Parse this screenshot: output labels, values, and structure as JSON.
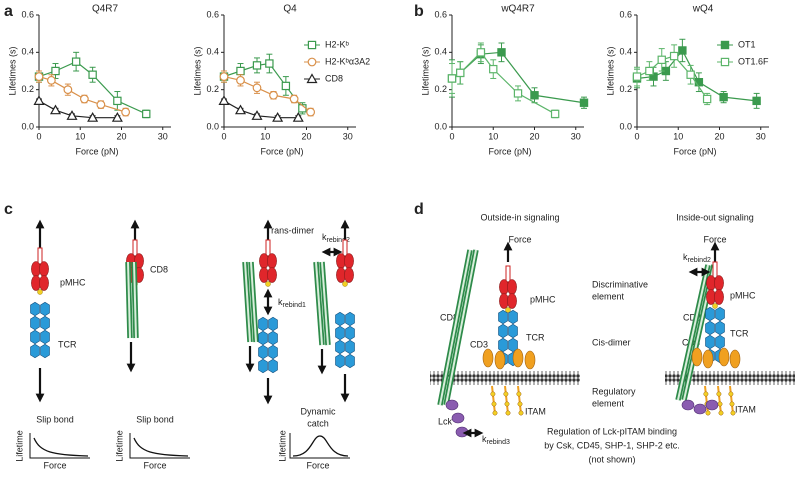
{
  "chart_data": [
    {
      "type": "line",
      "title": "Q4R7",
      "xlabel": "Force (pN)",
      "ylabel": "Lifetimes (s)",
      "xlim": [
        0,
        32
      ],
      "ylim": [
        0,
        0.6
      ],
      "xticks": [
        0,
        10,
        20,
        30
      ],
      "yticks": [
        {
          "value": 0,
          "label": "0.0"
        },
        {
          "value": 0.2,
          "label": "0.2"
        },
        {
          "value": 0.4,
          "label": "0.4"
        },
        {
          "value": 0.6,
          "label": "0.6"
        }
      ],
      "legend": false,
      "series": [
        {
          "color": "#3b9a4e",
          "marker": "square-open",
          "x": [
            0,
            4,
            9,
            13,
            19,
            26
          ],
          "values": [
            0.27,
            0.3,
            0.35,
            0.28,
            0.14,
            0.07
          ],
          "errors": [
            0.03,
            0.04,
            0.05,
            0.04,
            0.05,
            0.02
          ]
        },
        {
          "color": "#d9904a",
          "marker": "circle-open",
          "x": [
            0,
            3,
            7,
            11,
            15,
            21
          ],
          "values": [
            0.27,
            0.25,
            0.2,
            0.15,
            0.12,
            0.08
          ],
          "errors": [
            0.03,
            0.03,
            0.03,
            0.02,
            0.02,
            0.02
          ]
        },
        {
          "color": "#222222",
          "marker": "triangle-open",
          "x": [
            0,
            4,
            8,
            13,
            19
          ],
          "values": [
            0.14,
            0.09,
            0.06,
            0.05,
            0.05
          ],
          "errors": [
            0.01,
            0.01,
            0.01,
            0.01,
            0.01
          ]
        }
      ]
    },
    {
      "type": "line",
      "title": "Q4",
      "xlabel": "Force (pN)",
      "ylabel": "Lifetimes (s)",
      "xlim": [
        0,
        32
      ],
      "ylim": [
        0,
        0.6
      ],
      "xticks": [
        0,
        10,
        20,
        30
      ],
      "yticks": [
        {
          "value": 0,
          "label": "0.0"
        },
        {
          "value": 0.2,
          "label": "0.2"
        },
        {
          "value": 0.4,
          "label": "0.4"
        },
        {
          "value": 0.6,
          "label": "0.6"
        }
      ],
      "legend": "upper right",
      "series": [
        {
          "name": "H2-Kᵇ",
          "color": "#3b9a4e",
          "marker": "square-open",
          "x": [
            0,
            4,
            8,
            11,
            15,
            19
          ],
          "values": [
            0.27,
            0.3,
            0.33,
            0.34,
            0.22,
            0.1
          ],
          "errors": [
            0.03,
            0.04,
            0.04,
            0.05,
            0.05,
            0.03
          ]
        },
        {
          "name": "H2-Kᵇα3A2",
          "color": "#d9904a",
          "marker": "circle-open",
          "x": [
            0,
            4,
            8,
            12,
            17,
            21
          ],
          "values": [
            0.27,
            0.25,
            0.21,
            0.17,
            0.15,
            0.08
          ],
          "errors": [
            0.03,
            0.03,
            0.03,
            0.02,
            0.02,
            0.02
          ]
        },
        {
          "name": "CD8",
          "color": "#222222",
          "marker": "triangle-open",
          "x": [
            0,
            4,
            8,
            13,
            18
          ],
          "values": [
            0.14,
            0.09,
            0.06,
            0.05,
            0.05
          ],
          "errors": [
            0.01,
            0.01,
            0.01,
            0.01,
            0.01
          ]
        }
      ]
    },
    {
      "type": "line",
      "title": "wQ4R7",
      "xlabel": "Force (pN)",
      "ylabel": "Lifetimes (s)",
      "xlim": [
        0,
        32
      ],
      "ylim": [
        0,
        0.6
      ],
      "xticks": [
        0,
        10,
        20,
        30
      ],
      "yticks": [
        {
          "value": 0,
          "label": "0.0"
        },
        {
          "value": 0.2,
          "label": "0.2"
        },
        {
          "value": 0.4,
          "label": "0.4"
        },
        {
          "value": 0.6,
          "label": "0.6"
        }
      ],
      "legend": false,
      "series": [
        {
          "color": "#3b9a4e",
          "marker": "square-filled",
          "x": [
            0,
            2,
            7,
            12,
            20,
            32
          ],
          "values": [
            0.26,
            0.29,
            0.39,
            0.4,
            0.17,
            0.13
          ],
          "errors": [
            0.1,
            0.06,
            0.05,
            0.05,
            0.04,
            0.03
          ]
        },
        {
          "color": "#5cb56a",
          "marker": "square-open",
          "x": [
            0,
            2,
            7,
            10,
            16,
            25
          ],
          "values": [
            0.26,
            0.29,
            0.4,
            0.31,
            0.18,
            0.07
          ],
          "errors": [
            0.08,
            0.06,
            0.05,
            0.05,
            0.04,
            0.02
          ]
        }
      ]
    },
    {
      "type": "line",
      "title": "wQ4",
      "xlabel": "Force (pN)",
      "ylabel": "Lifetimes (s)",
      "xlim": [
        0,
        32
      ],
      "ylim": [
        0,
        0.6
      ],
      "xticks": [
        0,
        10,
        20,
        30
      ],
      "yticks": [
        {
          "value": 0,
          "label": "0.0"
        },
        {
          "value": 0.2,
          "label": "0.2"
        },
        {
          "value": 0.4,
          "label": "0.4"
        },
        {
          "value": 0.6,
          "label": "0.6"
        }
      ],
      "legend": "upper right",
      "series": [
        {
          "name": "OT1",
          "color": "#3b9a4e",
          "marker": "square-filled",
          "x": [
            0,
            4,
            7,
            11,
            15,
            21,
            29
          ],
          "values": [
            0.26,
            0.27,
            0.3,
            0.41,
            0.24,
            0.16,
            0.14
          ],
          "errors": [
            0.05,
            0.05,
            0.05,
            0.06,
            0.05,
            0.03,
            0.04
          ]
        },
        {
          "name": "OT1.6F",
          "color": "#5cb56a",
          "marker": "square-open",
          "x": [
            0,
            3,
            6,
            9,
            13,
            17
          ],
          "values": [
            0.27,
            0.3,
            0.36,
            0.38,
            0.28,
            0.15
          ],
          "errors": [
            0.05,
            0.05,
            0.06,
            0.06,
            0.05,
            0.03
          ]
        }
      ]
    }
  ],
  "panel_labels": [
    "a",
    "b",
    "c",
    "d"
  ],
  "diagram_c": {
    "pmhc": "pMHC",
    "tcr": "TCR",
    "cd8": "CD8",
    "trans_dimer": "Trans-dimer",
    "k1": {
      "label": "k",
      "subscript": "rebind1"
    },
    "k2": {
      "label": "k",
      "subscript": "rebind2"
    },
    "slip_bond_1": "Slip bond",
    "slip_bond_2": "Slip bond",
    "dynamic_catch": [
      "Dynamic",
      "catch"
    ],
    "axis_y": [
      "Lifetime",
      "Lifetime",
      "Lifetime"
    ],
    "axis_x": [
      "Force",
      "Force",
      "Force"
    ]
  },
  "diagram_d": {
    "outside_in": "Outside-in signaling",
    "inside_out": "Inside-out signaling",
    "force": [
      "Force",
      "Force"
    ],
    "discriminative": [
      "Discriminative",
      "element"
    ],
    "cis_dimer": "Cis-dimer",
    "regulatory": [
      "Regulatory",
      "element"
    ],
    "cd8": [
      "CD8",
      "CD8"
    ],
    "pmhc": [
      "pMHC",
      "pMHC"
    ],
    "cd3": [
      "CD3",
      "CD3"
    ],
    "tcr": [
      "TCR",
      "TCR"
    ],
    "itam": [
      "ITAM",
      "ITAM"
    ],
    "lck": "Lck",
    "k3": {
      "label": "k",
      "subscript": "rebind3"
    },
    "k2": {
      "label": "k",
      "subscript": "rebind2"
    },
    "note": [
      "Regulation of Lck-pITAM binding",
      "by Csk, CD45, SHP-1, SHP-2 etc.",
      "(not shown)"
    ]
  }
}
